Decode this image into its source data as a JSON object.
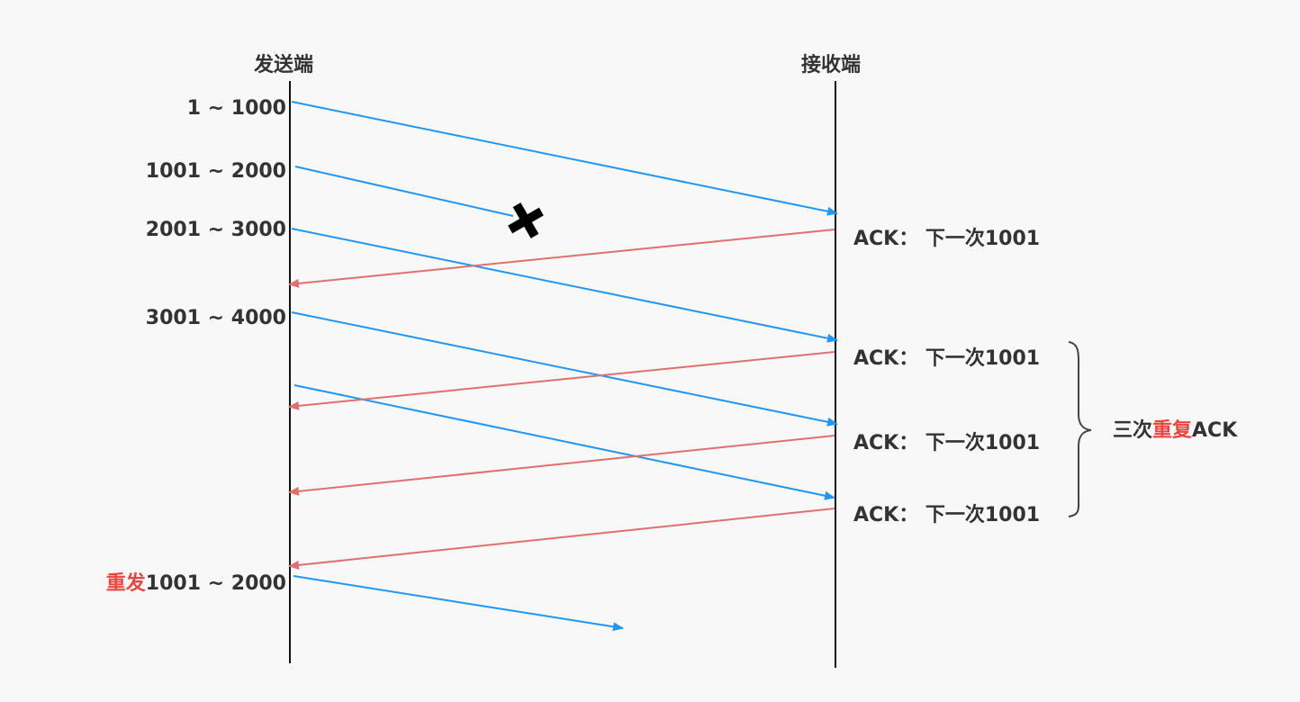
{
  "colors": {
    "background": "#f8f8f8",
    "text": "#333333",
    "data_arrow": "#2196f3",
    "ack_arrow": "#e07070",
    "highlight": "#e8473f"
  },
  "lanes": {
    "sender": "发送端",
    "receiver": "接收端"
  },
  "sender_segments": [
    "1 ~ 1000",
    "1001 ~ 2000",
    "2001 ~ 3000",
    "3001 ~ 4000"
  ],
  "resend": {
    "prefix": "重发",
    "range": "1001 ~ 2000"
  },
  "acks": [
    "ACK： 下一次1001",
    "ACK： 下一次1001",
    "ACK： 下一次1001",
    "ACK： 下一次1001"
  ],
  "brace_note": {
    "prefix": "三次",
    "highlight": "重复",
    "suffix": "ACK"
  },
  "lost_marker": "x-mark-icon"
}
